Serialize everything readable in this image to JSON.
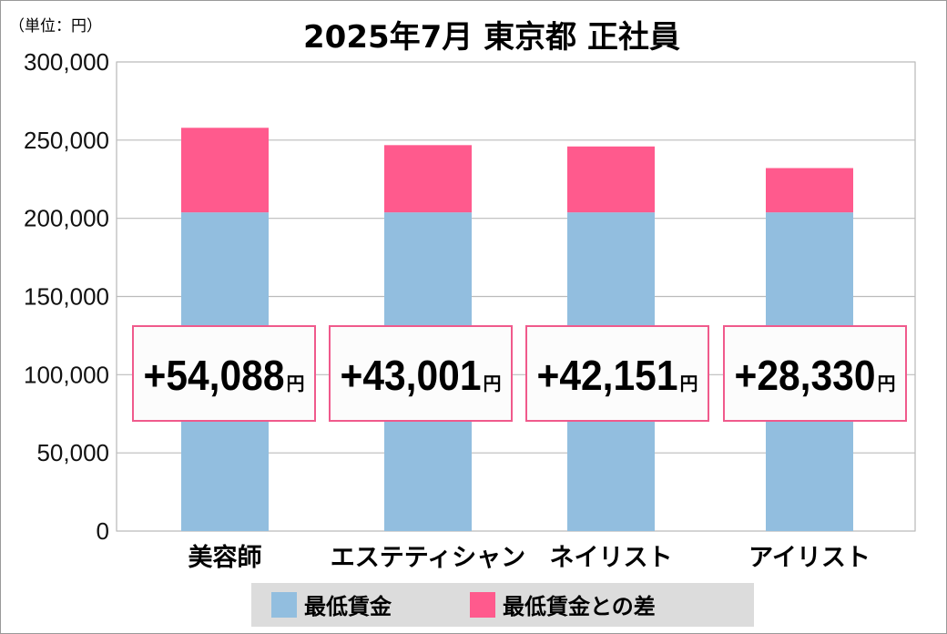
{
  "chart_data": {
    "type": "bar",
    "stacked": true,
    "title": "2025年7月 東京都 正社員",
    "unit_label": "（単位：円）",
    "categories": [
      "美容師",
      "エステティシャン",
      "ネイリスト",
      "アイリスト"
    ],
    "series": [
      {
        "name": "最低賃金",
        "values": [
          203800,
          203800,
          203800,
          203800
        ],
        "color": "#92bedf"
      },
      {
        "name": "最低賃金との差",
        "values": [
          54088,
          43001,
          42151,
          28330
        ],
        "color": "#ff5a8d"
      }
    ],
    "data_labels": [
      "+54,088",
      "+43,001",
      "+42,151",
      "+28,330"
    ],
    "data_label_unit": "円",
    "ylim": [
      0,
      300000
    ],
    "yticks": [
      0,
      50000,
      100000,
      150000,
      200000,
      250000,
      300000
    ],
    "ytick_labels": [
      "0",
      "50,000",
      "100,000",
      "150,000",
      "200,000",
      "250,000",
      "300,000"
    ],
    "grid": true,
    "legend_position": "bottom"
  }
}
